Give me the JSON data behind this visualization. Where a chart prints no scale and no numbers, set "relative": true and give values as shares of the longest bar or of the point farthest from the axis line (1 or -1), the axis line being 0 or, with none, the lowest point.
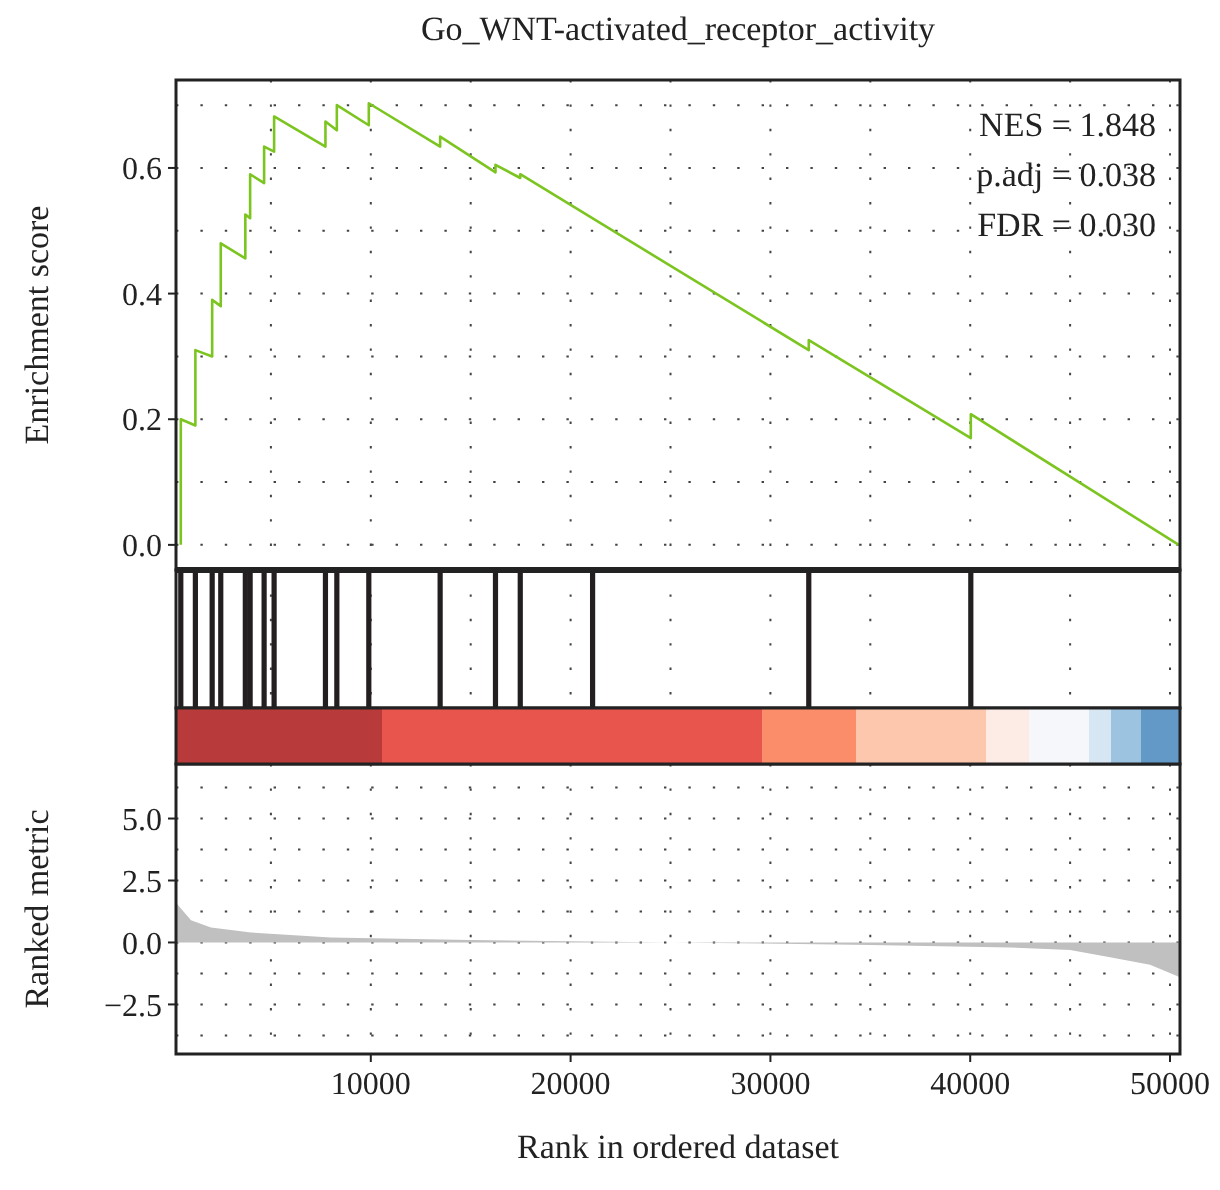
{
  "chart_data": [
    {
      "type": "line",
      "title": "Go_WNT-activated_receptor_activity",
      "ylabel": "Enrichment score",
      "xlim": [
        250,
        50500
      ],
      "ylim": [
        -0.04,
        0.74
      ],
      "xticks": [
        {
          "value": 5000,
          "label": null
        },
        {
          "value": 10000,
          "label": null
        },
        {
          "value": 15000,
          "label": null
        },
        {
          "value": 20000,
          "label": null
        },
        {
          "value": 25000,
          "label": null
        },
        {
          "value": 30000,
          "label": null
        },
        {
          "value": 35000,
          "label": null
        },
        {
          "value": 40000,
          "label": null
        },
        {
          "value": 45000,
          "label": null
        },
        {
          "value": 50000,
          "label": null
        }
      ],
      "yticks": [
        {
          "value": 0,
          "label": "0.0"
        },
        {
          "value": 0.2,
          "label": "0.2"
        },
        {
          "value": 0.4,
          "label": "0.4"
        },
        {
          "value": 0.6,
          "label": "0.6"
        }
      ],
      "tick_labels": "y",
      "grid": true,
      "annotations": [
        "NES = 1.848",
        "p.adj = 0.038",
        "FDR = 0.030"
      ],
      "series": [
        {
          "color": "#7cc520",
          "x": [
            490,
            490,
            1220,
            1220,
            2060,
            2060,
            2490,
            2490,
            3720,
            3720,
            3960,
            3960,
            4660,
            4660,
            5160,
            5160,
            7730,
            7730,
            8300,
            8300,
            9900,
            9900,
            13470,
            13470,
            16240,
            16240,
            17480,
            17480,
            31920,
            31920,
            40030,
            40030,
            50440
          ],
          "values": [
            0,
            0.2,
            0.19,
            0.31,
            0.3,
            0.39,
            0.38,
            0.48,
            0.456,
            0.526,
            0.52,
            0.59,
            0.576,
            0.634,
            0.626,
            0.682,
            0.634,
            0.674,
            0.66,
            0.7,
            0.668,
            0.703,
            0.634,
            0.65,
            0.593,
            0.605,
            0.584,
            0.59,
            0.31,
            0.326,
            0.17,
            0.208,
            0
          ]
        }
      ]
    },
    {
      "type": "bar",
      "relative": true,
      "xlim": [
        250,
        50500
      ],
      "tick_labels": false,
      "grid": "x",
      "xticks": [
        {
          "value": 5000,
          "label": null
        },
        {
          "value": 10000,
          "label": null
        },
        {
          "value": 15000,
          "label": null
        },
        {
          "value": 20000,
          "label": null
        },
        {
          "value": 25000,
          "label": null
        },
        {
          "value": 30000,
          "label": null
        },
        {
          "value": 35000,
          "label": null
        },
        {
          "value": 40000,
          "label": null
        },
        {
          "value": 45000,
          "label": null
        },
        {
          "value": 50000,
          "label": null
        }
      ],
      "series": [
        {
          "color": "#231f20",
          "x": [
            490,
            1220,
            2060,
            2490,
            3720,
            3960,
            4660,
            5160,
            7730,
            8300,
            9900,
            13470,
            16240,
            17480,
            21100,
            31920,
            40030
          ],
          "values": [
            1,
            1,
            1,
            1,
            1,
            1,
            1,
            1,
            1,
            1,
            1,
            1,
            1,
            1,
            1,
            1,
            1
          ]
        }
      ]
    },
    {
      "type": "area",
      "xlabel": "Rank in ordered dataset",
      "ylabel": "Ranked metric",
      "xlim": [
        250,
        50500
      ],
      "ylim": [
        -4.5,
        7.2
      ],
      "grid": true,
      "xticks": [
        {
          "value": 5000,
          "label": null
        },
        10000,
        {
          "value": 15000,
          "label": null
        },
        20000,
        {
          "value": 25000,
          "label": null
        },
        30000,
        {
          "value": 35000,
          "label": null
        },
        40000,
        {
          "value": 45000,
          "label": null
        },
        50000
      ],
      "yticks": [
        {
          "value": -2.5,
          "label": "−2.5"
        },
        {
          "value": 0,
          "label": "0.0"
        },
        {
          "value": 2.5,
          "label": "2.5"
        },
        {
          "value": 5,
          "label": "5.0"
        }
      ],
      "series": [
        {
          "color": "#c0c0c0",
          "x": [
            250,
            1000,
            2000,
            4000,
            8000,
            15000,
            25000,
            35000,
            42000,
            45000,
            47000,
            49000,
            50500
          ],
          "values": [
            1.6,
            0.9,
            0.6,
            0.4,
            0.2,
            0.1,
            0.0,
            -0.1,
            -0.2,
            -0.3,
            -0.6,
            -0.9,
            -1.4
          ]
        }
      ]
    }
  ]
}
